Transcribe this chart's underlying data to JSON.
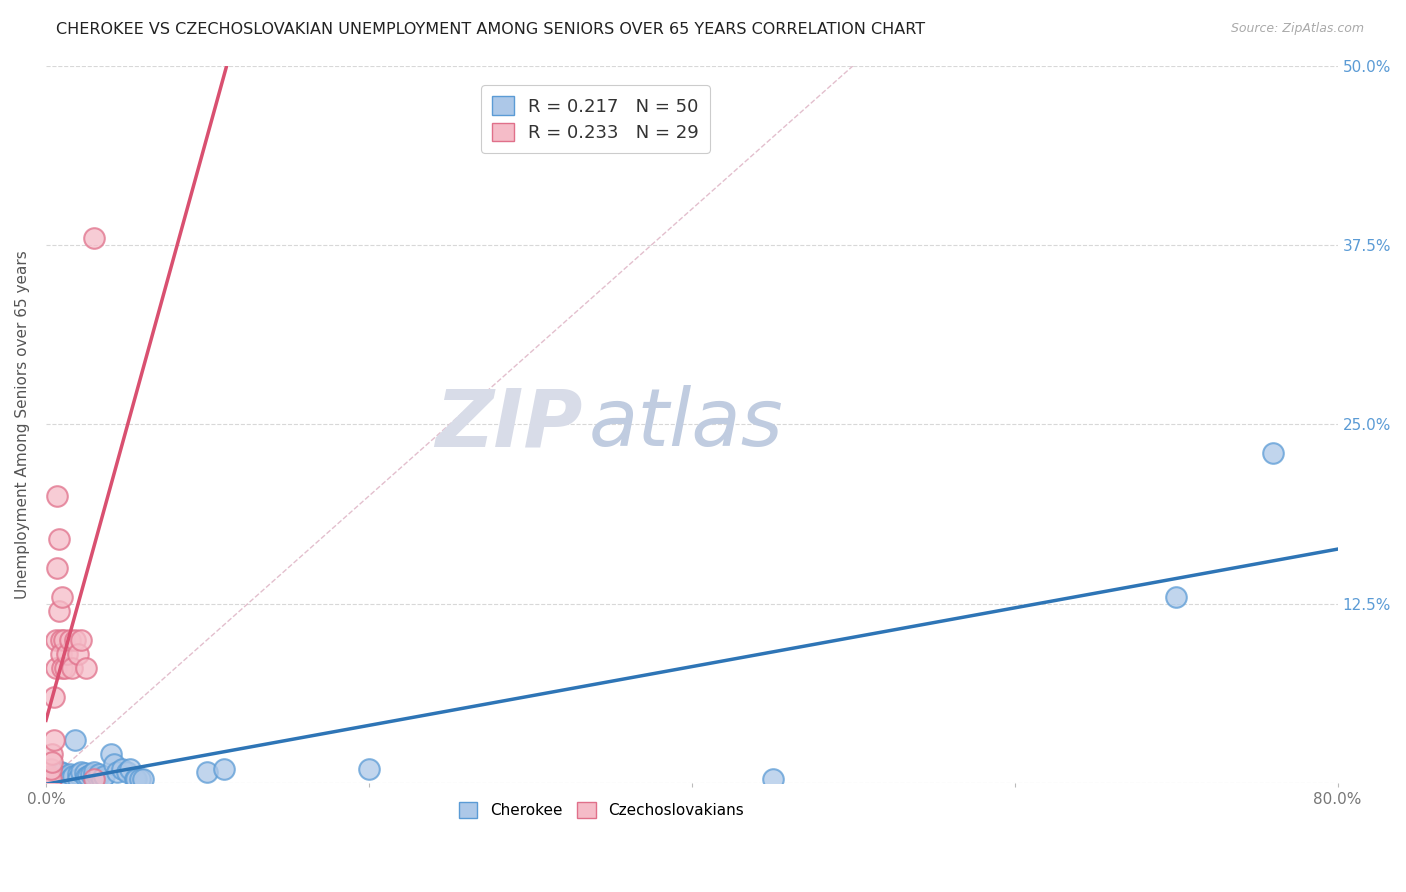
{
  "title": "CHEROKEE VS CZECHOSLOVAKIAN UNEMPLOYMENT AMONG SENIORS OVER 65 YEARS CORRELATION CHART",
  "source": "Source: ZipAtlas.com",
  "ylabel": "Unemployment Among Seniors over 65 years",
  "xlim": [
    0.0,
    0.8
  ],
  "ylim": [
    0.0,
    0.5
  ],
  "cherokee_color": "#adc8e8",
  "cherokee_edge_color": "#5b9bd5",
  "czechoslovakian_color": "#f5bcc8",
  "czechoslovakian_edge_color": "#e0708a",
  "cherokee_line_color": "#2e75b6",
  "czechoslovakian_line_color": "#d95070",
  "diagonal_color": "#e0b8c8",
  "cherokee_R": 0.217,
  "cherokee_N": 50,
  "czechoslovakian_R": 0.233,
  "czechoslovakian_N": 29,
  "cherokee_points": [
    [
      0.001,
      0.002
    ],
    [
      0.002,
      0.003
    ],
    [
      0.003,
      0.004
    ],
    [
      0.004,
      0.003
    ],
    [
      0.005,
      0.002
    ],
    [
      0.005,
      0.005
    ],
    [
      0.006,
      0.003
    ],
    [
      0.007,
      0.004
    ],
    [
      0.008,
      0.002
    ],
    [
      0.008,
      0.005
    ],
    [
      0.009,
      0.008
    ],
    [
      0.01,
      0.003
    ],
    [
      0.01,
      0.007
    ],
    [
      0.011,
      0.004
    ],
    [
      0.012,
      0.003
    ],
    [
      0.013,
      0.005
    ],
    [
      0.014,
      0.004
    ],
    [
      0.015,
      0.006
    ],
    [
      0.015,
      0.003
    ],
    [
      0.017,
      0.005
    ],
    [
      0.018,
      0.03
    ],
    [
      0.02,
      0.006
    ],
    [
      0.02,
      0.003
    ],
    [
      0.022,
      0.008
    ],
    [
      0.024,
      0.007
    ],
    [
      0.025,
      0.004
    ],
    [
      0.026,
      0.005
    ],
    [
      0.028,
      0.006
    ],
    [
      0.03,
      0.005
    ],
    [
      0.03,
      0.008
    ],
    [
      0.032,
      0.004
    ],
    [
      0.033,
      0.006
    ],
    [
      0.035,
      0.003
    ],
    [
      0.036,
      0.005
    ],
    [
      0.04,
      0.02
    ],
    [
      0.042,
      0.013
    ],
    [
      0.044,
      0.008
    ],
    [
      0.047,
      0.01
    ],
    [
      0.05,
      0.008
    ],
    [
      0.052,
      0.01
    ],
    [
      0.055,
      0.003
    ],
    [
      0.056,
      0.003
    ],
    [
      0.058,
      0.003
    ],
    [
      0.06,
      0.003
    ],
    [
      0.1,
      0.008
    ],
    [
      0.11,
      0.01
    ],
    [
      0.2,
      0.01
    ],
    [
      0.45,
      0.003
    ],
    [
      0.7,
      0.13
    ],
    [
      0.76,
      0.23
    ]
  ],
  "czechoslovakian_points": [
    [
      0.001,
      0.002
    ],
    [
      0.002,
      0.005
    ],
    [
      0.003,
      0.003
    ],
    [
      0.003,
      0.01
    ],
    [
      0.004,
      0.02
    ],
    [
      0.004,
      0.015
    ],
    [
      0.005,
      0.03
    ],
    [
      0.005,
      0.06
    ],
    [
      0.006,
      0.1
    ],
    [
      0.006,
      0.08
    ],
    [
      0.007,
      0.15
    ],
    [
      0.007,
      0.2
    ],
    [
      0.008,
      0.17
    ],
    [
      0.008,
      0.12
    ],
    [
      0.009,
      0.1
    ],
    [
      0.009,
      0.09
    ],
    [
      0.01,
      0.08
    ],
    [
      0.01,
      0.13
    ],
    [
      0.011,
      0.1
    ],
    [
      0.012,
      0.08
    ],
    [
      0.013,
      0.09
    ],
    [
      0.015,
      0.1
    ],
    [
      0.016,
      0.08
    ],
    [
      0.018,
      0.1
    ],
    [
      0.02,
      0.09
    ],
    [
      0.022,
      0.1
    ],
    [
      0.025,
      0.08
    ],
    [
      0.03,
      0.003
    ],
    [
      0.03,
      0.38
    ]
  ]
}
